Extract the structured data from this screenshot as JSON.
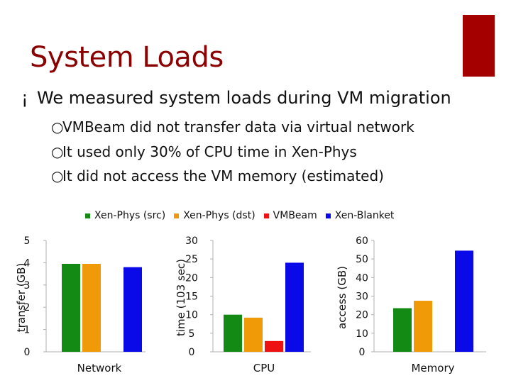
{
  "slide": {
    "title": "System Loads",
    "bullet_main": "We measured system loads during VM migration",
    "bullet_glyph": "¡",
    "sub_glyph": "○",
    "sub_bullets": [
      "VMBeam did not transfer data via virtual network",
      "It used only 30% of CPU time in Xen-Phys",
      "It did not access the VM memory (estimated)"
    ],
    "accent_color": "#a50000",
    "title_color": "#8b0000"
  },
  "legend": [
    {
      "name": "Xen-Phys (src)",
      "color": "#138a13"
    },
    {
      "name": "Xen-Phys (dst)",
      "color": "#ef9a06"
    },
    {
      "name": "VMBeam",
      "color": "#ee1111"
    },
    {
      "name": "Xen-Blanket",
      "color": "#0a0ae8"
    }
  ],
  "chart_data": [
    {
      "type": "bar",
      "category": "Network",
      "ylabel": "transfer (GB)",
      "ylim": [
        0,
        5
      ],
      "yticks": [
        0,
        1,
        2,
        3,
        4,
        5
      ],
      "series": [
        {
          "name": "Xen-Phys (src)",
          "value": 3.95
        },
        {
          "name": "Xen-Phys (dst)",
          "value": 3.95
        },
        {
          "name": "VMBeam",
          "value": 0
        },
        {
          "name": "Xen-Blanket",
          "value": 3.8
        }
      ]
    },
    {
      "type": "bar",
      "category": "CPU",
      "ylabel": "time (103 sec)",
      "ylim": [
        0,
        30
      ],
      "yticks": [
        0,
        5,
        10,
        15,
        20,
        25,
        30
      ],
      "series": [
        {
          "name": "Xen-Phys (src)",
          "value": 10
        },
        {
          "name": "Xen-Phys (dst)",
          "value": 9.2
        },
        {
          "name": "VMBeam",
          "value": 2.9
        },
        {
          "name": "Xen-Blanket",
          "value": 24
        }
      ]
    },
    {
      "type": "bar",
      "category": "Memory",
      "ylabel": "access (GB)",
      "ylim": [
        0,
        60
      ],
      "yticks": [
        0,
        10,
        20,
        30,
        40,
        50,
        60
      ],
      "series": [
        {
          "name": "Xen-Phys (src)",
          "value": 23.5
        },
        {
          "name": "Xen-Phys (dst)",
          "value": 27.5
        },
        {
          "name": "VMBeam",
          "value": 0
        },
        {
          "name": "Xen-Blanket",
          "value": 54.5
        }
      ]
    }
  ]
}
